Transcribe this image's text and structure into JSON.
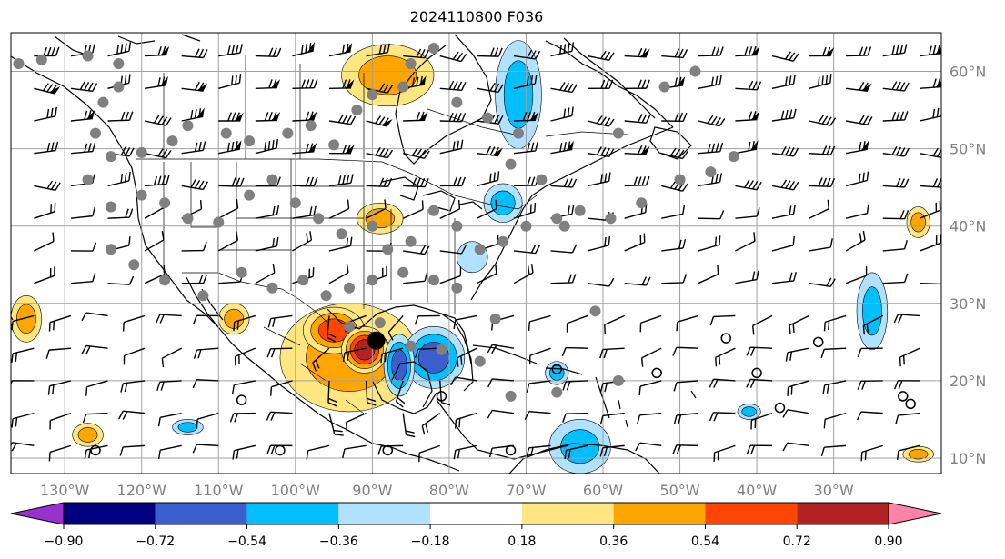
{
  "title": "2024110800 F036",
  "map": {
    "lon_range": [
      -137,
      -16
    ],
    "lat_range": [
      8,
      65
    ],
    "lon_labels": [
      "130°W",
      "120°W",
      "110°W",
      "100°W",
      "90°W",
      "80°W",
      "70°W",
      "60°W",
      "50°W",
      "40°W",
      "30°W"
    ],
    "lon_values": [
      -130,
      -120,
      -110,
      -100,
      -90,
      -80,
      -70,
      -60,
      -50,
      -40,
      -30
    ],
    "lat_labels": [
      "10°N",
      "20°N",
      "30°N",
      "40°N",
      "50°N",
      "60°N"
    ],
    "lat_values": [
      10,
      20,
      30,
      40,
      50,
      60
    ],
    "hurricane_center": {
      "lon": -89.5,
      "lat": 25.2
    },
    "positive_areas": [
      {
        "lon": -93,
        "lat": 23,
        "rx": 9,
        "ry": 7,
        "value": 0.5
      },
      {
        "lon": -95,
        "lat": 26.5,
        "rx": 4,
        "ry": 3,
        "value": 0.7
      },
      {
        "lon": -91,
        "lat": 24,
        "rx": 3,
        "ry": 3,
        "value": 0.8
      },
      {
        "lon": -88,
        "lat": 59.5,
        "rx": 6,
        "ry": 4,
        "value": 0.45
      },
      {
        "lon": -89,
        "lat": 41,
        "rx": 3,
        "ry": 2,
        "value": 0.4
      },
      {
        "lon": -135,
        "lat": 28,
        "rx": 2,
        "ry": 3,
        "value": 0.4
      },
      {
        "lon": -108,
        "lat": 28,
        "rx": 2,
        "ry": 2,
        "value": 0.4
      },
      {
        "lon": -19,
        "lat": 40.5,
        "rx": 1.5,
        "ry": 2,
        "value": 0.4
      },
      {
        "lon": -19,
        "lat": 10.5,
        "rx": 2,
        "ry": 1,
        "value": 0.4
      },
      {
        "lon": -127,
        "lat": 13,
        "rx": 2,
        "ry": 1.5,
        "value": 0.4
      }
    ],
    "negative_areas": [
      {
        "lon": -82,
        "lat": 23,
        "rx": 4,
        "ry": 4,
        "value": -0.65
      },
      {
        "lon": -86.5,
        "lat": 22,
        "rx": 2,
        "ry": 4,
        "value": -0.6
      },
      {
        "lon": -71,
        "lat": 57,
        "rx": 3,
        "ry": 7,
        "value": -0.45
      },
      {
        "lon": -63,
        "lat": 11.5,
        "rx": 4,
        "ry": 3.5,
        "value": -0.45
      },
      {
        "lon": -25,
        "lat": 29,
        "rx": 2,
        "ry": 5,
        "value": -0.4
      },
      {
        "lon": -73,
        "lat": 43,
        "rx": 2.5,
        "ry": 2.5,
        "value": -0.4
      },
      {
        "lon": -66,
        "lat": 21,
        "rx": 1.5,
        "ry": 1.5,
        "value": -0.4
      },
      {
        "lon": -77,
        "lat": 36,
        "rx": 2,
        "ry": 2,
        "value": -0.35
      },
      {
        "lon": -41,
        "lat": 16,
        "rx": 1.5,
        "ry": 1,
        "value": -0.4
      },
      {
        "lon": -114,
        "lat": 14,
        "rx": 2,
        "ry": 1,
        "value": -0.4
      }
    ]
  },
  "colorbar": {
    "tick_labels": [
      "−0.90",
      "−0.72",
      "−0.54",
      "−0.36",
      "−0.18",
      "0.18",
      "0.36",
      "0.54",
      "0.72",
      "0.90"
    ],
    "colors": [
      "#9932cc",
      "#000080",
      "#3a5fcd",
      "#00bfff",
      "#b0e2ff",
      "#ffffff",
      "#ffe680",
      "#ffa500",
      "#ff4500",
      "#b22222",
      "#ff82ab"
    ]
  }
}
